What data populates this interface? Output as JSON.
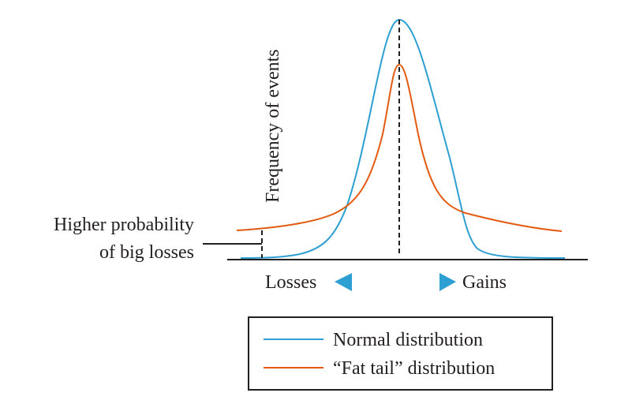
{
  "y_axis_label": "Frequency of events",
  "annotation": {
    "line1": "Higher probability",
    "line2": "of big losses"
  },
  "x_direction": {
    "left_label": "Losses",
    "right_label": "Gains",
    "left_icon": "triangle-left-icon",
    "right_icon": "triangle-right-icon"
  },
  "legend": {
    "items": [
      {
        "label": "Normal distribution",
        "color": "#2e9fd2"
      },
      {
        "label": "“Fat tail” distribution",
        "color": "#e35b12"
      }
    ]
  },
  "colors": {
    "normal": "#2e9fd2",
    "fat_tail": "#e35b12",
    "axis": "#231f20",
    "arrow": "#2e9fd2"
  }
}
